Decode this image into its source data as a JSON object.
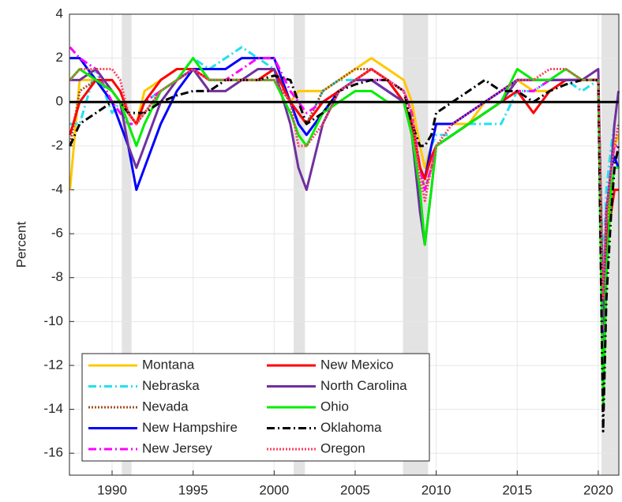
{
  "chart_data": {
    "type": "line",
    "y_label": "Percent",
    "x": [
      1987.4,
      1988,
      1989,
      1990,
      1990.5,
      1991,
      1991.5,
      1992,
      1993,
      1994,
      1995,
      1996,
      1997,
      1998,
      1999,
      2000,
      2001,
      2001.5,
      2002,
      2003,
      2004,
      2005,
      2006,
      2007,
      2008,
      2008.5,
      2009,
      2009.3,
      2009.7,
      2010,
      2011,
      2012,
      2013,
      2014,
      2015,
      2016,
      2017,
      2018,
      2019,
      2020,
      2020.3,
      2020.5,
      2020.8,
      2021,
      2021.25
    ],
    "xlim": [
      1987.37,
      2021.27
    ],
    "xticks": [
      1990,
      1995,
      2000,
      2005,
      2010,
      2015,
      2020
    ],
    "ylim": [
      -17,
      4
    ],
    "yticks": [
      -16,
      -14,
      -12,
      -10,
      -8,
      -6,
      -4,
      -2,
      0,
      2,
      4
    ],
    "grid": true,
    "zero_line": true,
    "legend_position": "lower left",
    "recessions": [
      [
        1990.6,
        1991.2
      ],
      [
        2001.2,
        2001.9
      ],
      [
        2007.95,
        2009.5
      ],
      [
        2020.2,
        2021.27
      ]
    ],
    "series": [
      {
        "name": "Montana",
        "color": "#ffc800",
        "style": "solid",
        "values": [
          -4,
          1,
          1,
          0.5,
          0,
          -0.5,
          -1,
          0.5,
          1,
          1.5,
          1.5,
          0.5,
          0.5,
          1,
          1,
          1.5,
          0,
          0.5,
          0.5,
          0.5,
          1,
          1.5,
          2,
          1.5,
          1,
          0,
          -2,
          -3,
          -2,
          -1,
          -1,
          -1,
          0,
          0.5,
          1,
          0.5,
          0.5,
          1,
          1,
          1,
          -12,
          -6,
          -3,
          -2,
          -1.5
        ]
      },
      {
        "name": "Nebraska",
        "color": "#22e0f0",
        "style": "dashdot",
        "values": [
          -1,
          -1,
          1.5,
          -0.5,
          0,
          -1,
          -1,
          0,
          0.5,
          1,
          2,
          1.5,
          2,
          2.5,
          2,
          1.5,
          0,
          -0.5,
          -1,
          0.5,
          1,
          1,
          1.5,
          1,
          0,
          -1,
          -3,
          -3.5,
          -2,
          -1.5,
          -1.5,
          -1,
          -1,
          -1,
          0.5,
          0.5,
          1,
          1,
          0.5,
          1,
          -8,
          -4,
          -2,
          -1,
          -1
        ]
      },
      {
        "name": "Nevada",
        "color": "#a0521e",
        "style": "dotted",
        "values": [
          -2,
          0.5,
          1,
          0.5,
          0,
          -0.5,
          -1,
          -0.5,
          0.5,
          1,
          1.5,
          1,
          1,
          1,
          1,
          1,
          0,
          -0.5,
          -1,
          0.5,
          1,
          1.5,
          1.5,
          1,
          0,
          -1,
          -3,
          -4,
          -3,
          -2,
          -1.5,
          -1,
          -0.5,
          0,
          1,
          1,
          1,
          1,
          1,
          1,
          -10,
          -6,
          -4,
          -4,
          -4
        ]
      },
      {
        "name": "New Hampshire",
        "color": "#0000ff",
        "style": "solid",
        "values": [
          2,
          2,
          1,
          0,
          -1,
          -2,
          -4,
          -3,
          -1,
          0.5,
          1.5,
          1.5,
          1.5,
          2,
          2,
          2,
          0,
          -1,
          -1.5,
          -0.5,
          0.5,
          1,
          1,
          0.5,
          0,
          -1,
          -3,
          -3.5,
          -2,
          -1,
          -1,
          -0.5,
          0,
          0.5,
          1,
          1,
          1,
          1,
          1,
          1,
          -11,
          -5,
          -3,
          -2.5,
          -3
        ]
      },
      {
        "name": "New Jersey",
        "color": "#ff00ff",
        "style": "dashdot",
        "values": [
          2.5,
          2,
          1.5,
          0,
          -0.5,
          -1,
          -1,
          0,
          0.5,
          1,
          1.5,
          1,
          1,
          1.5,
          2,
          2,
          0.5,
          0,
          -0.5,
          0,
          0.5,
          1,
          1,
          1,
          0.5,
          -0.5,
          -3,
          -4,
          -3,
          -2,
          -1.5,
          -1,
          -0.5,
          0,
          0.5,
          0.5,
          1,
          1,
          1,
          1,
          -12,
          -5,
          -3,
          -2,
          -2
        ]
      },
      {
        "name": "New Mexico",
        "color": "#ff0000",
        "style": "solid",
        "values": [
          -1.5,
          0,
          1,
          1,
          0.5,
          -0.5,
          -1,
          0,
          1,
          1.5,
          1.5,
          1,
          1,
          1,
          1,
          1.5,
          0,
          -0.5,
          -1,
          0,
          0.5,
          1,
          1.5,
          1,
          0,
          -1,
          -3,
          -3.5,
          -2.5,
          -2,
          -1.5,
          -1,
          -0.5,
          0,
          0.5,
          -0.5,
          0.5,
          1,
          1,
          1,
          -10,
          -6,
          -5,
          -4,
          -4
        ]
      },
      {
        "name": "North Carolina",
        "color": "#7030a0",
        "style": "solid",
        "values": [
          1,
          1,
          1.5,
          0.5,
          0,
          -2,
          -3,
          -2,
          0,
          1,
          1.5,
          0.5,
          0.5,
          1,
          1.5,
          1.5,
          -1,
          -3,
          -4,
          -1,
          0.5,
          1,
          1,
          0.5,
          0,
          -1.5,
          -5,
          -6.5,
          -4,
          -2,
          -1.5,
          -1,
          -0.5,
          0,
          1,
          1,
          1,
          1,
          1,
          1.5,
          -10,
          -5,
          -3,
          -1,
          0.5
        ]
      },
      {
        "name": "Ohio",
        "color": "#00ee00",
        "style": "solid",
        "values": [
          1,
          1.5,
          1,
          0.5,
          0,
          -1,
          -2,
          -1,
          0.5,
          1,
          2,
          1,
          1,
          1,
          1,
          1,
          -0.5,
          -1.5,
          -2,
          -0.5,
          0,
          0.5,
          0.5,
          0,
          0,
          -1.5,
          -4,
          -6.5,
          -4,
          -2,
          -1.5,
          -1,
          -0.5,
          0,
          1.5,
          1,
          1,
          1.5,
          1,
          1,
          -14,
          -8,
          -4,
          -3,
          -3
        ]
      },
      {
        "name": "Oklahoma",
        "color": "#000000",
        "style": "dashdot",
        "values": [
          -2,
          -1,
          -0.5,
          0,
          0,
          -0.5,
          -0.5,
          -0.5,
          0,
          0.3,
          0.5,
          0.5,
          1,
          1,
          1,
          1.2,
          1,
          0,
          -1,
          -0.5,
          0.5,
          0.8,
          1,
          1,
          0.5,
          -1,
          -2,
          -2,
          -1.5,
          -0.5,
          0,
          0.5,
          1,
          0.5,
          0.5,
          0,
          0.5,
          0.8,
          1,
          1,
          -15,
          -9,
          -5,
          -3,
          -2
        ]
      },
      {
        "name": "Oregon",
        "color": "#ff4060",
        "style": "dotted",
        "values": [
          1,
          1.5,
          1.5,
          1.5,
          1,
          -0.5,
          -1,
          -0.5,
          0.5,
          1,
          1.5,
          1,
          1,
          1,
          1,
          1,
          0,
          -2,
          -2,
          -1,
          0.5,
          1,
          1.5,
          1,
          0.5,
          -0.5,
          -3.5,
          -4.5,
          -3,
          -2,
          -1,
          -0.5,
          0,
          0.5,
          1,
          1,
          1.5,
          1.5,
          1,
          1,
          -9,
          -5,
          -3,
          -2,
          -1
        ]
      }
    ]
  }
}
